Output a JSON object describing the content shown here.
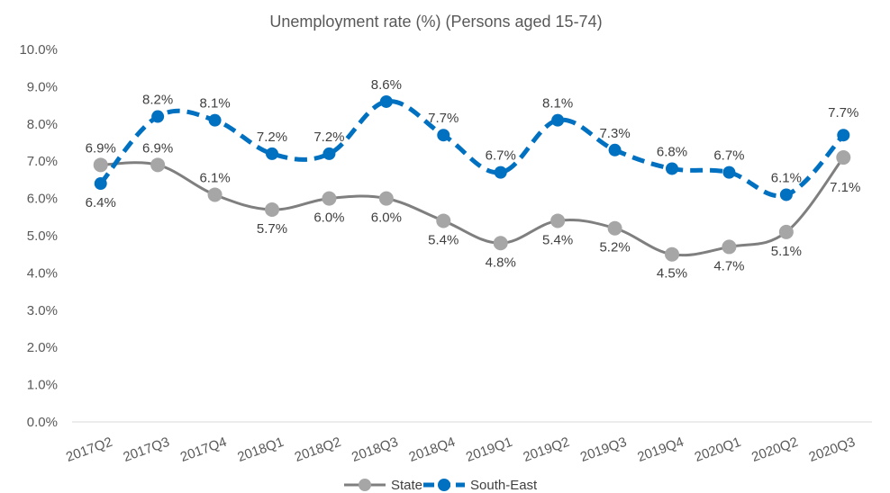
{
  "chart_data": {
    "type": "line",
    "title": "Unemployment rate (%) (Persons aged 15-74)",
    "xlabel": "",
    "ylabel": "",
    "categories": [
      "2017Q2",
      "2017Q3",
      "2017Q4",
      "2018Q1",
      "2018Q2",
      "2018Q3",
      "2018Q4",
      "2019Q1",
      "2019Q2",
      "2019Q3",
      "2019Q4",
      "2020Q1",
      "2020Q2",
      "2020Q3"
    ],
    "yticks": [
      "0.0%",
      "1.0%",
      "2.0%",
      "3.0%",
      "4.0%",
      "5.0%",
      "6.0%",
      "7.0%",
      "8.0%",
      "9.0%",
      "10.0%"
    ],
    "ylim": [
      0,
      10
    ],
    "grid": false,
    "legend_position": "bottom",
    "series": [
      {
        "name": "State",
        "color": "#a6a6a6",
        "line_color": "#7f7f7f",
        "style": "solid-smooth",
        "values": [
          6.9,
          6.9,
          6.1,
          5.7,
          6.0,
          6.0,
          5.4,
          4.8,
          5.4,
          5.2,
          4.5,
          4.7,
          5.1,
          7.1
        ],
        "labels": [
          "6.9%",
          "6.9%",
          "6.1%",
          "5.7%",
          "6.0%",
          "6.0%",
          "5.4%",
          "4.8%",
          "5.4%",
          "5.2%",
          "4.5%",
          "4.7%",
          "5.1%",
          "7.1%"
        ]
      },
      {
        "name": "South-East",
        "color": "#0070c0",
        "line_color": "#0070c0",
        "style": "dashed-smooth",
        "values": [
          6.4,
          8.2,
          8.1,
          7.2,
          7.2,
          8.6,
          7.7,
          6.7,
          8.1,
          7.3,
          6.8,
          6.7,
          6.1,
          7.7
        ],
        "labels": [
          "6.4%",
          "8.2%",
          "8.1%",
          "7.2%",
          "7.2%",
          "8.6%",
          "7.7%",
          "6.7%",
          "8.1%",
          "7.3%",
          "6.8%",
          "6.7%",
          "6.1%",
          "7.7%"
        ]
      }
    ]
  }
}
